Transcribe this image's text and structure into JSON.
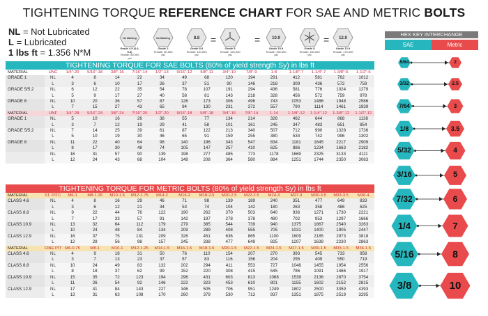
{
  "title": {
    "pre": "TIGHTENING TORQUE ",
    "bold1": "REFERENCE CHART",
    "mid": " FOR SAE AND METRIC ",
    "bold2": "BOLTS"
  },
  "legend": {
    "nl_abbr": "NL",
    "nl_text": " = Not Lubricated",
    "l_abbr": "L",
    "l_text": " = Lubricated",
    "conv_bold": "1 lbs ft",
    "conv_text": " = 1.356 N*M"
  },
  "grade_cards": [
    {
      "head": "No Marking",
      "label": "Grade 4.8 (4.6, 5.8)",
      "sub": "Tensile: 60,000 psi"
    },
    {
      "head": "No Marking",
      "label": "Grade 2",
      "sub": "Tensile: 60,000 psi"
    },
    {
      "head": "8.8",
      "label": "Grade 8.8",
      "sub": "Tensile: 120,000 psi"
    },
    {
      "head": "",
      "label": "Grade 5",
      "sub": "Tensile: 120,000 psi"
    },
    {
      "head": "10.9",
      "label": "Grade 10.9",
      "sub": "Tensile: 150,000 psi"
    },
    {
      "head": "",
      "label": "Grade 8",
      "sub": "Tensile: 150,000 psi"
    },
    {
      "head": "12.9",
      "label": "Grade 12.9",
      "sub": "Tensile: 170,000 psi"
    }
  ],
  "equals": [
    "=",
    "=",
    "="
  ],
  "sae_bar": "TIGHTENING TORQUE FOR SAE BOLTS (80% of yield strength Sy) in lbs ft",
  "metric_bar": "TIGHTENING TORQUE FOR METRIC BOLTS (80% of yield strength Sy) in lbs ft",
  "sae_unc_header": [
    "MATERIAL",
    "UNC",
    "1/4\"-20",
    "5/16\"-18",
    "3/8\"-16",
    "7/16\"-14",
    "1/2\"-13",
    "9/16\"-12",
    "5/8\"-11",
    "3/4\"-10",
    "7/8\"-9",
    "1-8",
    "1-1/8\"-7",
    "1-1/4\"-7",
    "1-3/8\"-6",
    "1-1/2\"-6"
  ],
  "sae_unc_rows": [
    [
      "GRADE 1",
      "NL",
      "4",
      "8",
      "14",
      "22",
      "34",
      "49",
      "68",
      "120",
      "194",
      "291",
      "412",
      "581",
      "762",
      "1012"
    ],
    [
      "",
      "L",
      "3",
      "6",
      "10",
      "17",
      "26",
      "37",
      "51",
      "90",
      "146",
      "218",
      "309",
      "436",
      "572",
      "759"
    ],
    [
      "GRADE 5/5.2",
      "NL",
      "6",
      "12",
      "22",
      "35",
      "54",
      "78",
      "107",
      "191",
      "294",
      "436",
      "581",
      "776",
      "1024",
      "1279"
    ],
    [
      "",
      "L",
      "5",
      "9",
      "17",
      "27",
      "40",
      "58",
      "81",
      "143",
      "218",
      "328",
      "456",
      "572",
      "759",
      "978"
    ],
    [
      "GRADE 8",
      "NL",
      "10",
      "20",
      "36",
      "57",
      "87",
      "126",
      "173",
      "306",
      "496",
      "743",
      "1053",
      "1486",
      "1948",
      "2586"
    ],
    [
      "",
      "L",
      "7",
      "15",
      "27",
      "43",
      "65",
      "94",
      "130",
      "231",
      "372",
      "557",
      "790",
      "1114",
      "1461",
      "1939"
    ]
  ],
  "sae_unf_header": [
    "MATERIAL",
    "UNF",
    "1/4\"-28",
    "5/16\"-24",
    "3/8\"-24",
    "7/16\"-20",
    "1/2\"-20",
    "9/16\"-18",
    "5/8\"-18",
    "3/4\"-16",
    "7/8\"-14",
    "1-14",
    "1-1/8\"-12",
    "1-1/4\"-12",
    "1-3/8\"-12",
    "1-1/2\"-12"
  ],
  "sae_unf_rows": [
    [
      "GRADE 1",
      "NL",
      "5",
      "10",
      "16",
      "26",
      "38",
      "55",
      "77",
      "134",
      "214",
      "326",
      "462",
      "644",
      "868",
      "1138"
    ],
    [
      "",
      "L",
      "3",
      "7",
      "12",
      "19",
      "29",
      "41",
      "58",
      "101",
      "161",
      "245",
      "347",
      "483",
      "651",
      "854"
    ],
    [
      "GRADE 5/5.2",
      "NL",
      "7",
      "14",
      "25",
      "39",
      "61",
      "87",
      "122",
      "213",
      "340",
      "507",
      "712",
      "990",
      "1328",
      "1736"
    ],
    [
      "",
      "L",
      "5",
      "10",
      "19",
      "30",
      "46",
      "65",
      "91",
      "159",
      "255",
      "380",
      "534",
      "742",
      "996",
      "1302"
    ],
    [
      "GRADE 8",
      "NL",
      "11",
      "22",
      "40",
      "64",
      "98",
      "140",
      "196",
      "343",
      "547",
      "834",
      "1181",
      "1645",
      "2217",
      "2909"
    ],
    [
      "",
      "L",
      "8",
      "17",
      "30",
      "48",
      "74",
      "105",
      "147",
      "257",
      "410",
      "625",
      "886",
      "1234",
      "1663",
      "2182"
    ],
    [
      "",
      "NL",
      "16",
      "31",
      "57",
      "90",
      "139",
      "198",
      "277",
      "485",
      "773",
      "1178",
      "1669",
      "2325",
      "3133",
      "4111"
    ],
    [
      "",
      "L",
      "12",
      "24",
      "43",
      "68",
      "104",
      "148",
      "208",
      "364",
      "580",
      "884",
      "1251",
      "1744",
      "2350",
      "3083"
    ]
  ],
  "met_st_header": [
    "MATERIAL",
    "ST. PITCH",
    "M6-1",
    "M8-1.25",
    "M10-1.5",
    "M12-1.75",
    "M14-2",
    "M16-2",
    "M18-2.5",
    "M20-2.5",
    "M22-2.5",
    "M24-3",
    "M27-3",
    "M30-3.5",
    "M33-3.5",
    "M36-4"
  ],
  "met_st_rows": [
    [
      "CLASS 4.6",
      "NL",
      "4",
      "8",
      "16",
      "29",
      "46",
      "71",
      "98",
      "139",
      "189",
      "240",
      "351",
      "477",
      "649",
      "833"
    ],
    [
      "",
      "L",
      "3",
      "6",
      "12",
      "21",
      "34",
      "53",
      "74",
      "104",
      "142",
      "180",
      "263",
      "358",
      "486",
      "625"
    ],
    [
      "CLASS 8.8",
      "NL",
      "9",
      "22",
      "44",
      "76",
      "122",
      "190",
      "262",
      "370",
      "503",
      "640",
      "936",
      "1271",
      "1730",
      "2221"
    ],
    [
      "",
      "L",
      "7",
      "17",
      "33",
      "57",
      "91",
      "142",
      "197",
      "278",
      "378",
      "480",
      "702",
      "953",
      "1297",
      "1666"
    ],
    [
      "CLASS 10.9",
      "NL",
      "13",
      "32",
      "64",
      "112",
      "179",
      "279",
      "385",
      "544",
      "739",
      "940",
      "1375",
      "1867",
      "2540",
      "3263"
    ],
    [
      "",
      "L",
      "10",
      "24",
      "48",
      "84",
      "134",
      "209",
      "289",
      "408",
      "555",
      "705",
      "1031",
      "1400",
      "1905",
      "2447"
    ],
    [
      "CLASS 12.9",
      "NL",
      "16",
      "37",
      "75",
      "131",
      "209",
      "326",
      "451",
      "636",
      "865",
      "1100",
      "1609",
      "2185",
      "2973",
      "3818"
    ],
    [
      "",
      "L",
      "12",
      "29",
      "56",
      "98",
      "157",
      "245",
      "338",
      "477",
      "649",
      "825",
      "1207",
      "1639",
      "2230",
      "2863"
    ]
  ],
  "met_fine_header": [
    "MATERIAL",
    "FINE PITCH",
    "M6-0.75",
    "M8-1",
    "M10-1",
    "M12-1.25",
    "M14-1.5",
    "M16-1.5",
    "M18-1.5",
    "M20-1.5",
    "M22-1.5",
    "M24-1.5",
    "M27-1.5",
    "M30-1.5",
    "M33-1.5",
    "M36-1.5"
  ],
  "met_fine_rows": [
    [
      "CLASS 4.6",
      "NL",
      "4",
      "9",
      "18",
      "31",
      "50",
      "76",
      "110",
      "154",
      "207",
      "270",
      "393",
      "545",
      "733",
      "958"
    ],
    [
      "",
      "L",
      "3",
      "7",
      "13",
      "23",
      "37",
      "57",
      "83",
      "116",
      "156",
      "204",
      "295",
      "409",
      "550",
      "719"
    ],
    [
      "CLASS 8.8",
      "NL",
      "10",
      "24",
      "49",
      "83",
      "132",
      "202",
      "294",
      "411",
      "553",
      "727",
      "1048",
      "1455",
      "1954",
      "2556"
    ],
    [
      "",
      "L",
      "8",
      "18",
      "37",
      "62",
      "99",
      "152",
      "220",
      "308",
      "415",
      "545",
      "786",
      "1091",
      "1466",
      "1917"
    ],
    [
      "CLASS 10.9",
      "NL",
      "15",
      "35",
      "72",
      "123",
      "194",
      "296",
      "431",
      "603",
      "813",
      "1068",
      "1539",
      "2136",
      "2870",
      "3754"
    ],
    [
      "",
      "L",
      "11",
      "26",
      "54",
      "92",
      "146",
      "222",
      "323",
      "453",
      "610",
      "801",
      "1155",
      "1602",
      "2152",
      "2815"
    ],
    [
      "CLASS 12.9",
      "NL",
      "17",
      "41",
      "84",
      "143",
      "227",
      "346",
      "505",
      "706",
      "951",
      "1249",
      "1802",
      "2500",
      "3359",
      "4393"
    ],
    [
      "",
      "L",
      "13",
      "31",
      "63",
      "108",
      "170",
      "260",
      "379",
      "530",
      "713",
      "937",
      "1351",
      "1875",
      "2519",
      "3295"
    ]
  ],
  "hex": {
    "title": "HEX KEY INTERCHANGE",
    "sae_label": "SAE",
    "metric_label": "Metric",
    "pairs": [
      {
        "sae": "5/64",
        "metric": "2"
      },
      {
        "sae": "3/32",
        "metric": "2.5"
      },
      {
        "sae": "7/64",
        "metric": "3"
      },
      {
        "sae": "1/8",
        "metric": "3.5"
      },
      {
        "sae": "5/32",
        "metric": "4"
      },
      {
        "sae": "3/16",
        "metric": "5"
      },
      {
        "sae": "7/32",
        "metric": "6"
      },
      {
        "sae": "1/4",
        "metric": "7"
      },
      {
        "sae": "5/16",
        "metric": "8"
      },
      {
        "sae": "3/8",
        "metric": "10"
      }
    ]
  },
  "colors": {
    "teal": "#26b6bd",
    "red": "#e94a4b",
    "pink_row": "#f7d6da",
    "yellow_row": "#f7e3b0",
    "header_grey": "#7a7a7a"
  }
}
